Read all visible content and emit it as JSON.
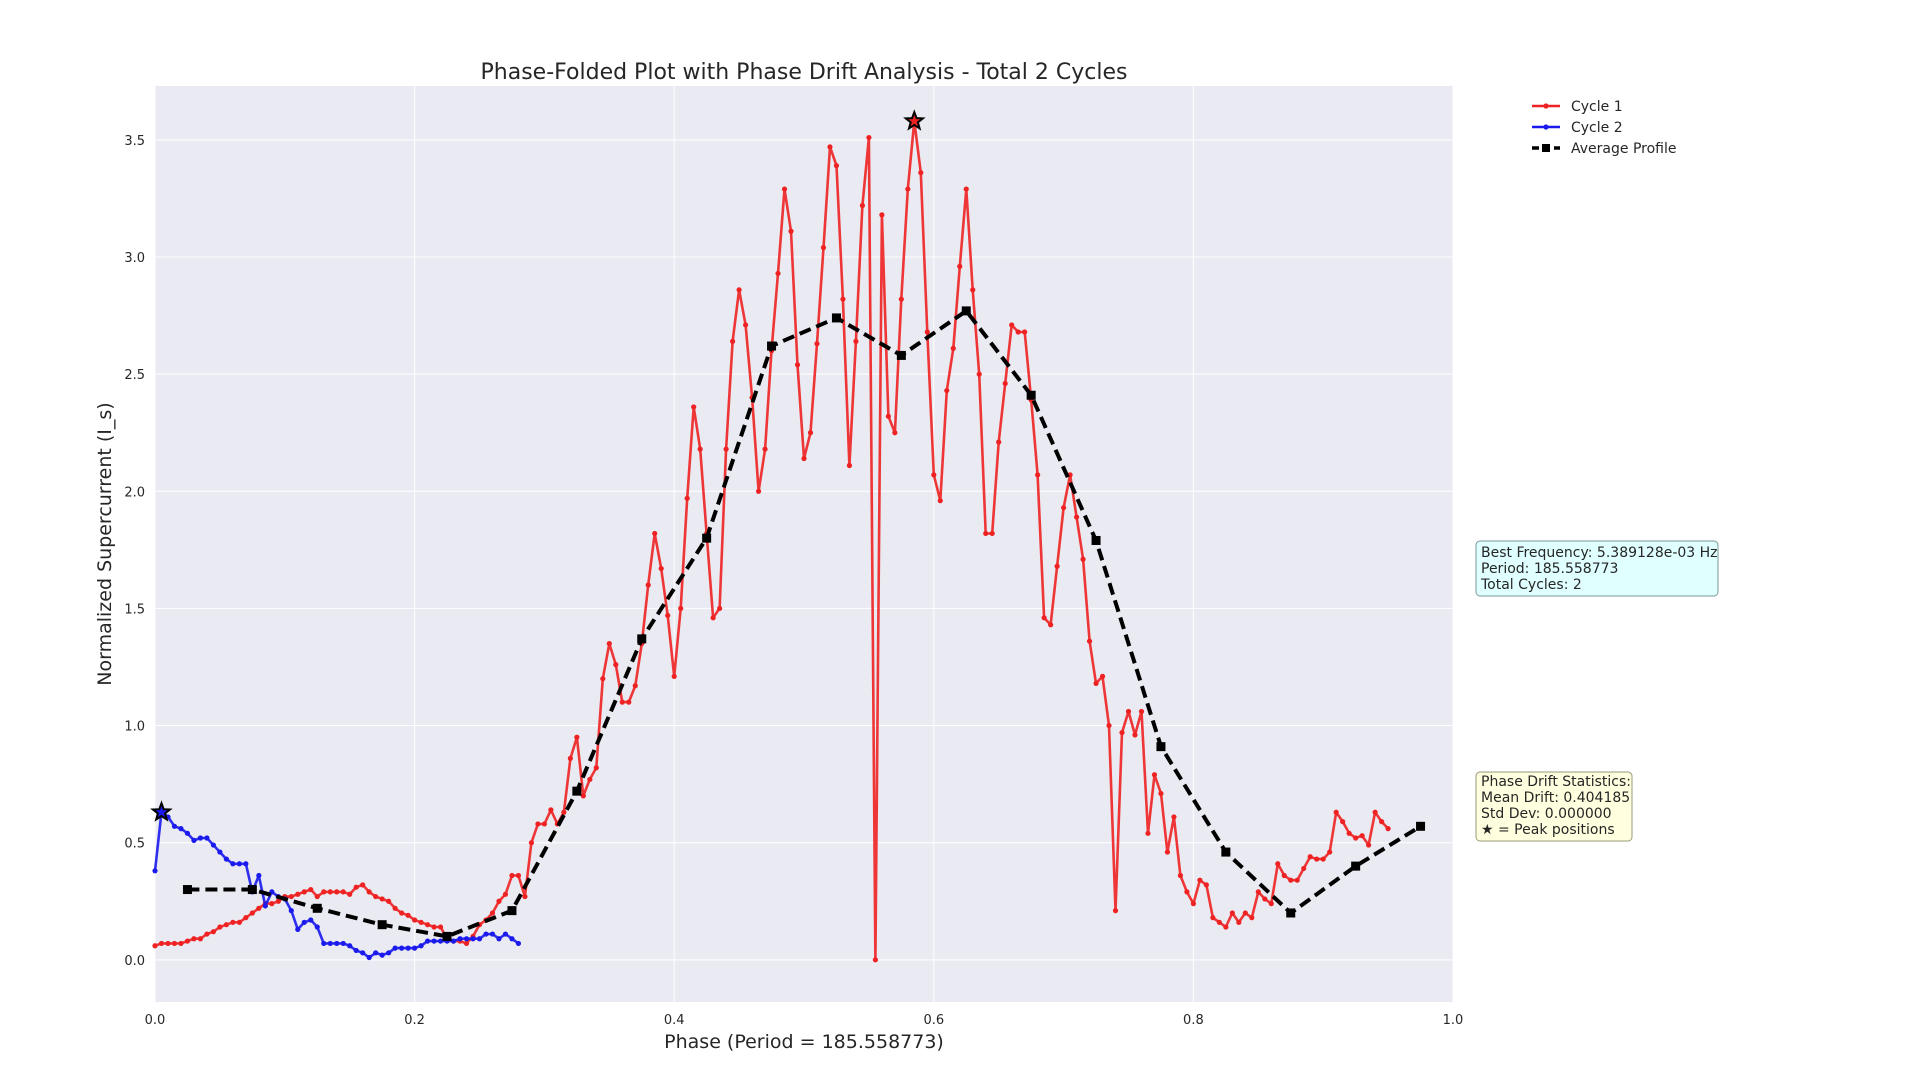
{
  "chart_data": {
    "type": "line",
    "title": "Phase-Folded Plot with Phase Drift Analysis - Total 2 Cycles",
    "xlabel": "Phase (Period = 185.558773)",
    "ylabel": "Normalized Supercurrent (I_s)",
    "xlim": [
      0.0,
      1.0
    ],
    "ylim": [
      -0.18,
      3.73
    ],
    "x_ticks": [
      0.0,
      0.2,
      0.4,
      0.6,
      0.8,
      1.0
    ],
    "x_tick_labels": [
      "0.0",
      "0.2",
      "0.4",
      "0.6",
      "0.8",
      "1.0"
    ],
    "y_ticks": [
      0.0,
      0.5,
      1.0,
      1.5,
      2.0,
      2.5,
      3.0,
      3.5
    ],
    "y_tick_labels": [
      "0.0",
      "0.5",
      "1.0",
      "1.5",
      "2.0",
      "2.5",
      "3.0",
      "3.5"
    ],
    "grid": true,
    "legend_position": "top-right (outside plot area)",
    "background_color": "#eaeaf2",
    "series": [
      {
        "name": "Cycle 1",
        "color": "#ee2222",
        "style": "solid line with dot markers",
        "points": [
          [
            0.0,
            0.06
          ],
          [
            0.005,
            0.07
          ],
          [
            0.01,
            0.07
          ],
          [
            0.015,
            0.07
          ],
          [
            0.02,
            0.07
          ],
          [
            0.025,
            0.08
          ],
          [
            0.03,
            0.09
          ],
          [
            0.035,
            0.09
          ],
          [
            0.04,
            0.11
          ],
          [
            0.045,
            0.12
          ],
          [
            0.05,
            0.14
          ],
          [
            0.055,
            0.15
          ],
          [
            0.06,
            0.16
          ],
          [
            0.065,
            0.16
          ],
          [
            0.07,
            0.18
          ],
          [
            0.075,
            0.2
          ],
          [
            0.08,
            0.22
          ],
          [
            0.085,
            0.24
          ],
          [
            0.09,
            0.24
          ],
          [
            0.095,
            0.25
          ],
          [
            0.1,
            0.27
          ],
          [
            0.105,
            0.27
          ],
          [
            0.11,
            0.28
          ],
          [
            0.115,
            0.29
          ],
          [
            0.12,
            0.3
          ],
          [
            0.125,
            0.27
          ],
          [
            0.13,
            0.29
          ],
          [
            0.135,
            0.29
          ],
          [
            0.14,
            0.29
          ],
          [
            0.145,
            0.29
          ],
          [
            0.15,
            0.28
          ],
          [
            0.155,
            0.31
          ],
          [
            0.16,
            0.32
          ],
          [
            0.165,
            0.29
          ],
          [
            0.17,
            0.27
          ],
          [
            0.175,
            0.26
          ],
          [
            0.18,
            0.25
          ],
          [
            0.185,
            0.22
          ],
          [
            0.19,
            0.2
          ],
          [
            0.195,
            0.19
          ],
          [
            0.2,
            0.17
          ],
          [
            0.205,
            0.16
          ],
          [
            0.21,
            0.15
          ],
          [
            0.215,
            0.14
          ],
          [
            0.22,
            0.14
          ],
          [
            0.225,
            0.09
          ],
          [
            0.23,
            0.08
          ],
          [
            0.235,
            0.08
          ],
          [
            0.24,
            0.07
          ],
          [
            0.245,
            0.1
          ],
          [
            0.25,
            0.15
          ],
          [
            0.255,
            0.17
          ],
          [
            0.26,
            0.2
          ],
          [
            0.265,
            0.25
          ],
          [
            0.27,
            0.28
          ],
          [
            0.275,
            0.36
          ],
          [
            0.28,
            0.36
          ],
          [
            0.285,
            0.27
          ],
          [
            0.29,
            0.5
          ],
          [
            0.295,
            0.58
          ],
          [
            0.3,
            0.58
          ],
          [
            0.305,
            0.64
          ],
          [
            0.31,
            0.58
          ],
          [
            0.315,
            0.63
          ],
          [
            0.32,
            0.86
          ],
          [
            0.325,
            0.95
          ],
          [
            0.33,
            0.7
          ],
          [
            0.335,
            0.77
          ],
          [
            0.34,
            0.82
          ],
          [
            0.345,
            1.2
          ],
          [
            0.35,
            1.35
          ],
          [
            0.355,
            1.26
          ],
          [
            0.36,
            1.1
          ],
          [
            0.365,
            1.1
          ],
          [
            0.37,
            1.17
          ],
          [
            0.375,
            1.35
          ],
          [
            0.38,
            1.6
          ],
          [
            0.385,
            1.82
          ],
          [
            0.39,
            1.67
          ],
          [
            0.395,
            1.47
          ],
          [
            0.4,
            1.21
          ],
          [
            0.405,
            1.5
          ],
          [
            0.41,
            1.97
          ],
          [
            0.415,
            2.36
          ],
          [
            0.42,
            2.18
          ],
          [
            0.425,
            1.82
          ],
          [
            0.43,
            1.46
          ],
          [
            0.435,
            1.5
          ],
          [
            0.44,
            2.18
          ],
          [
            0.445,
            2.64
          ],
          [
            0.45,
            2.86
          ],
          [
            0.455,
            2.71
          ],
          [
            0.46,
            2.4
          ],
          [
            0.465,
            2.0
          ],
          [
            0.47,
            2.18
          ],
          [
            0.475,
            2.6
          ],
          [
            0.48,
            2.93
          ],
          [
            0.485,
            3.29
          ],
          [
            0.49,
            3.11
          ],
          [
            0.495,
            2.54
          ],
          [
            0.5,
            2.14
          ],
          [
            0.505,
            2.25
          ],
          [
            0.51,
            2.63
          ],
          [
            0.515,
            3.04
          ],
          [
            0.52,
            3.47
          ],
          [
            0.525,
            3.39
          ],
          [
            0.53,
            2.82
          ],
          [
            0.535,
            2.11
          ],
          [
            0.54,
            2.64
          ],
          [
            0.545,
            3.22
          ],
          [
            0.55,
            3.51
          ],
          [
            0.555,
            0.0
          ],
          [
            0.56,
            3.18
          ],
          [
            0.565,
            2.32
          ],
          [
            0.57,
            2.25
          ],
          [
            0.575,
            2.82
          ],
          [
            0.58,
            3.29
          ],
          [
            0.585,
            3.58
          ],
          [
            0.59,
            3.36
          ],
          [
            0.595,
            2.68
          ],
          [
            0.6,
            2.07
          ],
          [
            0.605,
            1.96
          ],
          [
            0.61,
            2.43
          ],
          [
            0.615,
            2.61
          ],
          [
            0.62,
            2.96
          ],
          [
            0.625,
            3.29
          ],
          [
            0.63,
            2.86
          ],
          [
            0.635,
            2.5
          ],
          [
            0.64,
            1.82
          ],
          [
            0.645,
            1.82
          ],
          [
            0.65,
            2.21
          ],
          [
            0.655,
            2.46
          ],
          [
            0.66,
            2.71
          ],
          [
            0.665,
            2.68
          ],
          [
            0.67,
            2.68
          ],
          [
            0.675,
            2.39
          ],
          [
            0.68,
            2.07
          ],
          [
            0.685,
            1.46
          ],
          [
            0.69,
            1.43
          ],
          [
            0.695,
            1.68
          ],
          [
            0.7,
            1.93
          ],
          [
            0.705,
            2.07
          ],
          [
            0.71,
            1.89
          ],
          [
            0.715,
            1.71
          ],
          [
            0.72,
            1.36
          ],
          [
            0.725,
            1.18
          ],
          [
            0.73,
            1.21
          ],
          [
            0.735,
            1.0
          ],
          [
            0.74,
            0.21
          ],
          [
            0.745,
            0.97
          ],
          [
            0.75,
            1.06
          ],
          [
            0.755,
            0.96
          ],
          [
            0.76,
            1.06
          ],
          [
            0.765,
            0.54
          ],
          [
            0.77,
            0.79
          ],
          [
            0.775,
            0.71
          ],
          [
            0.78,
            0.46
          ],
          [
            0.785,
            0.61
          ],
          [
            0.79,
            0.36
          ],
          [
            0.795,
            0.29
          ],
          [
            0.8,
            0.24
          ],
          [
            0.805,
            0.34
          ],
          [
            0.81,
            0.32
          ],
          [
            0.815,
            0.18
          ],
          [
            0.82,
            0.16
          ],
          [
            0.825,
            0.14
          ],
          [
            0.83,
            0.2
          ],
          [
            0.835,
            0.16
          ],
          [
            0.84,
            0.2
          ],
          [
            0.845,
            0.18
          ],
          [
            0.85,
            0.29
          ],
          [
            0.855,
            0.26
          ],
          [
            0.86,
            0.24
          ],
          [
            0.865,
            0.41
          ],
          [
            0.87,
            0.36
          ],
          [
            0.875,
            0.34
          ],
          [
            0.88,
            0.34
          ],
          [
            0.885,
            0.39
          ],
          [
            0.89,
            0.44
          ],
          [
            0.895,
            0.43
          ],
          [
            0.9,
            0.43
          ],
          [
            0.905,
            0.46
          ],
          [
            0.91,
            0.63
          ],
          [
            0.915,
            0.59
          ],
          [
            0.92,
            0.54
          ],
          [
            0.925,
            0.52
          ],
          [
            0.93,
            0.53
          ],
          [
            0.935,
            0.49
          ],
          [
            0.94,
            0.63
          ],
          [
            0.945,
            0.59
          ],
          [
            0.95,
            0.56
          ]
        ]
      },
      {
        "name": "Cycle 2",
        "color": "#1a1aee",
        "style": "solid line with dot markers",
        "points": [
          [
            0.0,
            0.38
          ],
          [
            0.005,
            0.63
          ],
          [
            0.01,
            0.61
          ],
          [
            0.015,
            0.57
          ],
          [
            0.02,
            0.56
          ],
          [
            0.025,
            0.54
          ],
          [
            0.03,
            0.51
          ],
          [
            0.035,
            0.52
          ],
          [
            0.04,
            0.52
          ],
          [
            0.045,
            0.49
          ],
          [
            0.05,
            0.46
          ],
          [
            0.055,
            0.43
          ],
          [
            0.06,
            0.41
          ],
          [
            0.065,
            0.41
          ],
          [
            0.07,
            0.41
          ],
          [
            0.075,
            0.29
          ],
          [
            0.08,
            0.36
          ],
          [
            0.085,
            0.23
          ],
          [
            0.09,
            0.29
          ],
          [
            0.095,
            0.27
          ],
          [
            0.1,
            0.26
          ],
          [
            0.105,
            0.21
          ],
          [
            0.11,
            0.13
          ],
          [
            0.115,
            0.16
          ],
          [
            0.12,
            0.17
          ],
          [
            0.125,
            0.14
          ],
          [
            0.13,
            0.07
          ],
          [
            0.135,
            0.07
          ],
          [
            0.14,
            0.07
          ],
          [
            0.145,
            0.07
          ],
          [
            0.15,
            0.06
          ],
          [
            0.155,
            0.04
          ],
          [
            0.16,
            0.03
          ],
          [
            0.165,
            0.01
          ],
          [
            0.17,
            0.03
          ],
          [
            0.175,
            0.02
          ],
          [
            0.18,
            0.03
          ],
          [
            0.185,
            0.05
          ],
          [
            0.19,
            0.05
          ],
          [
            0.195,
            0.05
          ],
          [
            0.2,
            0.05
          ],
          [
            0.205,
            0.06
          ],
          [
            0.21,
            0.08
          ],
          [
            0.215,
            0.08
          ],
          [
            0.22,
            0.08
          ],
          [
            0.225,
            0.08
          ],
          [
            0.23,
            0.08
          ],
          [
            0.235,
            0.09
          ],
          [
            0.24,
            0.09
          ],
          [
            0.245,
            0.09
          ],
          [
            0.25,
            0.09
          ],
          [
            0.255,
            0.11
          ],
          [
            0.26,
            0.11
          ],
          [
            0.265,
            0.09
          ],
          [
            0.27,
            0.11
          ],
          [
            0.275,
            0.09
          ],
          [
            0.28,
            0.07
          ]
        ]
      },
      {
        "name": "Average Profile",
        "color": "#000000",
        "style": "dashed line with square markers",
        "points": [
          [
            0.025,
            0.3
          ],
          [
            0.075,
            0.3
          ],
          [
            0.125,
            0.22
          ],
          [
            0.175,
            0.15
          ],
          [
            0.225,
            0.1
          ],
          [
            0.275,
            0.21
          ],
          [
            0.325,
            0.72
          ],
          [
            0.375,
            1.37
          ],
          [
            0.425,
            1.8
          ],
          [
            0.475,
            2.62
          ],
          [
            0.525,
            2.74
          ],
          [
            0.575,
            2.58
          ],
          [
            0.625,
            2.77
          ],
          [
            0.675,
            2.41
          ],
          [
            0.725,
            1.79
          ],
          [
            0.775,
            0.91
          ],
          [
            0.825,
            0.46
          ],
          [
            0.875,
            0.2
          ],
          [
            0.925,
            0.4
          ],
          [
            0.975,
            0.57
          ]
        ]
      }
    ],
    "peak_markers": [
      {
        "series": "Cycle 2",
        "x": 0.005,
        "y": 0.63
      },
      {
        "series": "Cycle 1",
        "x": 0.585,
        "y": 3.58
      }
    ],
    "annotations": [
      {
        "name": "frequency-info-box",
        "background": "#e0ffff",
        "lines": [
          "Best Frequency: 5.389128e-03 Hz",
          "Period: 185.558773",
          "Total Cycles: 2"
        ]
      },
      {
        "name": "drift-stats-box",
        "background": "#ffffe0",
        "lines": [
          "Phase Drift Statistics:",
          "Mean Drift: 0.404185",
          "Std Dev: 0.000000",
          "★ = Peak positions"
        ]
      }
    ]
  }
}
